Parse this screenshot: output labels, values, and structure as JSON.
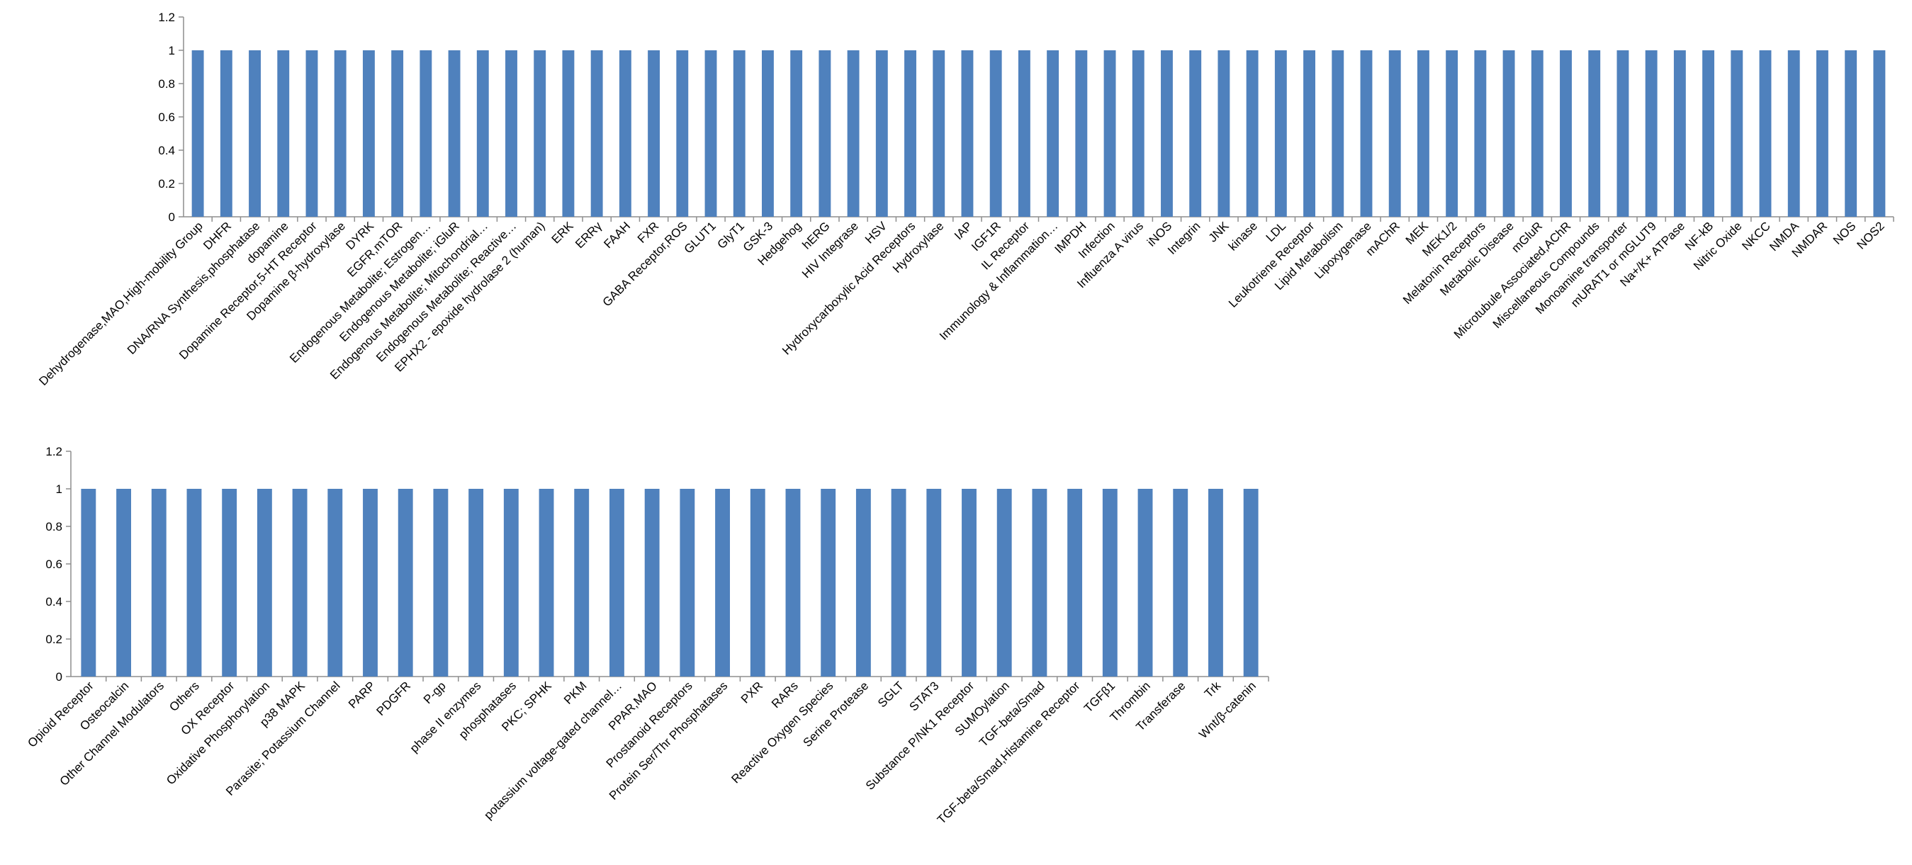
{
  "chart_data": [
    {
      "type": "bar",
      "title": "",
      "xlabel": "",
      "ylabel": "",
      "ylim": [
        0,
        1.2
      ],
      "yticks": [
        "0",
        "0.2",
        "0.4",
        "0.6",
        "0.8",
        "1",
        "1.2"
      ],
      "grid": false,
      "legend": "none",
      "bar_color": "#4f81bd",
      "categories": [
        "Dehydrogenase,MAO,High-mobility Group",
        "DHFR",
        "DNA/RNA Synthesis,phosphatase",
        "dopamine",
        "Dopamine Receptor,5-HT Receptor",
        "Dopamine β-hydroxylase",
        "DYRK",
        "EGFR,mTOR",
        "Endogenous Metabolite; Estrogen…",
        "Endogenous Metabolite; iGluR",
        "Endogenous Metabolite; Mitochondrial…",
        "Endogenous Metabolite; Reactive…",
        "EPHX2 - epoxide hydrolase 2 (human)",
        "ERK",
        "ERRγ",
        "FAAH",
        "FXR",
        "GABA Receptor,ROS",
        "GLUT1",
        "GlyT1",
        "GSK-3",
        "Hedgehog",
        "hERG",
        "HIV Integrase",
        "HSV",
        "Hydroxycarboxylic Acid Receptors",
        "Hydroxylase",
        "IAP",
        "IGF1R",
        "IL Receptor",
        "Immunology & Inflammation…",
        "IMPDH",
        "Infection",
        "Influenza A virus",
        "iNOS",
        "Integrin",
        "JNK",
        "kinase",
        "LDL",
        "Leukotriene Receptor",
        "Lipid Metabolism",
        "Lipoxygenase",
        "mAChR",
        "MEK",
        "MEK1/2",
        "Melatonin Receptors",
        "Metabolic Disease",
        "mGluR",
        "Microtubule Associated,AChR",
        "Miscellaneous Compounds",
        "Monoamine transporter",
        "mURAT1 or mGLUT9",
        "Na+/K+ ATPase",
        "NF-kB",
        "Nitric Oxide",
        "NKCC",
        "NMDA",
        "NMDAR",
        "NOS",
        "NOS2"
      ],
      "values": [
        1,
        1,
        1,
        1,
        1,
        1,
        1,
        1,
        1,
        1,
        1,
        1,
        1,
        1,
        1,
        1,
        1,
        1,
        1,
        1,
        1,
        1,
        1,
        1,
        1,
        1,
        1,
        1,
        1,
        1,
        1,
        1,
        1,
        1,
        1,
        1,
        1,
        1,
        1,
        1,
        1,
        1,
        1,
        1,
        1,
        1,
        1,
        1,
        1,
        1,
        1,
        1,
        1,
        1,
        1,
        1,
        1,
        1,
        1,
        1
      ]
    },
    {
      "type": "bar",
      "title": "",
      "xlabel": "",
      "ylabel": "",
      "ylim": [
        0,
        1.2
      ],
      "yticks": [
        "0",
        "0.2",
        "0.4",
        "0.6",
        "0.8",
        "1",
        "1.2"
      ],
      "grid": false,
      "legend": "none",
      "bar_color": "#4f81bd",
      "categories": [
        "Opioid Receptor",
        "Osteocalcin",
        "Other Channel Modulators",
        "Others",
        "OX Receptor",
        "Oxidative Phosphorylation",
        "p38 MAPK",
        "Parasite; Potassium Channel",
        "PARP",
        "PDGFR",
        "P-gp",
        "phase II enzymes",
        "phosphatases",
        "PKC; SPHK",
        "PKM",
        "potassium voltage-gated channel…",
        "PPAR,MAO",
        "Prostanoid Receptors",
        "Protein Ser/Thr Phosphatases",
        "PXR",
        "RARs",
        "Reactive Oxygen Species",
        "Serine Protease",
        "SGLT",
        "STAT3",
        "Substance P/NK1 Receptor",
        "SUMOylation",
        "TGF-beta/Smad",
        "TGF-beta/Smad,Histamine Receptor",
        "TGFβ1",
        "Thrombin",
        "Transferase",
        "Trk",
        "Wnt/β-catenin"
      ],
      "values": [
        1,
        1,
        1,
        1,
        1,
        1,
        1,
        1,
        1,
        1,
        1,
        1,
        1,
        1,
        1,
        1,
        1,
        1,
        1,
        1,
        1,
        1,
        1,
        1,
        1,
        1,
        1,
        1,
        1,
        1,
        1,
        1,
        1,
        1
      ]
    }
  ]
}
